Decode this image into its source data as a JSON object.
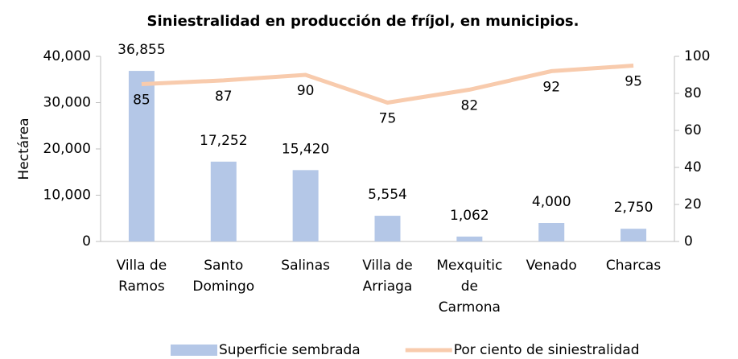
{
  "chart_data": {
    "type": "bar",
    "title": "Siniestralidad en producción de fríjol, en municipios.",
    "y_label": "Hectárea",
    "categories": [
      "Villa de Ramos",
      "Santo Domingo",
      "Salinas",
      "Villa de Arriaga",
      "Mexquitic de Carmona",
      "Venado",
      "Charcas"
    ],
    "ylim": [
      0,
      40000
    ],
    "yticks": [
      0,
      {
        "value": 10000,
        "label": "10,000"
      },
      {
        "value": 20000,
        "label": "20,000"
      },
      {
        "value": 30000,
        "label": "30,000"
      },
      {
        "value": 40000,
        "label": "40,000"
      }
    ],
    "y2lim": [
      0,
      100
    ],
    "y2ticks": [
      0,
      20,
      40,
      60,
      80,
      100
    ],
    "series": [
      {
        "name": "Superficie sembrada",
        "type": "bar",
        "color": "#b4c7e7",
        "values": [
          36855,
          17252,
          15420,
          5554,
          1062,
          4000,
          2750
        ],
        "value_labels": [
          "36,855",
          "17,252",
          "15,420",
          "5,554",
          "1,062",
          "4,000",
          "2,750"
        ]
      },
      {
        "name": "Por ciento de siniestralidad",
        "type": "line",
        "axis": "y2",
        "color": "#f8cbad",
        "values": [
          85,
          87,
          90,
          75,
          82,
          92,
          95
        ]
      }
    ],
    "legend": "bottom"
  }
}
